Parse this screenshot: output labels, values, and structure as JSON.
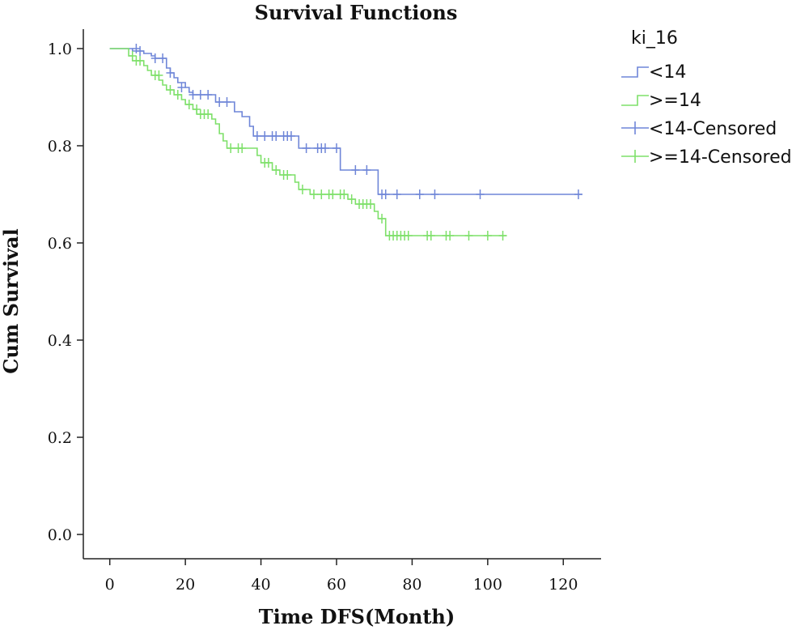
{
  "chart_data": {
    "type": "line",
    "title": "Survival Functions",
    "xlabel": "Time DFS(Month)",
    "ylabel": "Cum Survival",
    "xlim": [
      -7,
      130
    ],
    "ylim": [
      -0.05,
      1.04
    ],
    "xticks": [
      0,
      20,
      40,
      60,
      80,
      100,
      120
    ],
    "yticks": [
      0.0,
      0.2,
      0.4,
      0.6,
      0.8,
      1.0
    ],
    "xtick_labels": [
      "0",
      "20",
      "40",
      "60",
      "80",
      "100",
      "120"
    ],
    "ytick_labels": [
      "0.0",
      "0.2",
      "0.4",
      "0.6",
      "0.8",
      "1.0"
    ],
    "grid": false,
    "legend": {
      "title": "ki_16",
      "position": "top-right",
      "entries": [
        "<14",
        ">=14",
        "<14-Censored",
        ">=14-Censored"
      ]
    },
    "series": [
      {
        "name": "<14",
        "color": "#6f86d8",
        "steps": [
          [
            0,
            1.0
          ],
          [
            6,
            0.995
          ],
          [
            9,
            0.99
          ],
          [
            11,
            0.985
          ],
          [
            12,
            0.98
          ],
          [
            15,
            0.96
          ],
          [
            16,
            0.95
          ],
          [
            17,
            0.94
          ],
          [
            18,
            0.93
          ],
          [
            20,
            0.92
          ],
          [
            21,
            0.91
          ],
          [
            22,
            0.905
          ],
          [
            28,
            0.89
          ],
          [
            33,
            0.87
          ],
          [
            35,
            0.86
          ],
          [
            37,
            0.84
          ],
          [
            38,
            0.82
          ],
          [
            50,
            0.795
          ],
          [
            61,
            0.75
          ],
          [
            71,
            0.7
          ],
          [
            125,
            0.7
          ]
        ],
        "censored": [
          [
            7,
            1.0
          ],
          [
            8,
            0.995
          ],
          [
            12,
            0.98
          ],
          [
            14,
            0.98
          ],
          [
            16,
            0.95
          ],
          [
            19,
            0.92
          ],
          [
            22,
            0.905
          ],
          [
            24,
            0.905
          ],
          [
            26,
            0.905
          ],
          [
            29,
            0.89
          ],
          [
            31,
            0.89
          ],
          [
            39,
            0.82
          ],
          [
            41,
            0.82
          ],
          [
            43,
            0.82
          ],
          [
            44,
            0.82
          ],
          [
            46,
            0.82
          ],
          [
            47,
            0.82
          ],
          [
            48,
            0.82
          ],
          [
            52,
            0.795
          ],
          [
            55,
            0.795
          ],
          [
            56,
            0.795
          ],
          [
            57,
            0.795
          ],
          [
            60,
            0.795
          ],
          [
            65,
            0.75
          ],
          [
            68,
            0.75
          ],
          [
            72,
            0.7
          ],
          [
            73,
            0.7
          ],
          [
            76,
            0.7
          ],
          [
            82,
            0.7
          ],
          [
            86,
            0.7
          ],
          [
            98,
            0.7
          ],
          [
            124,
            0.7
          ]
        ]
      },
      {
        "name": ">=14",
        "color": "#7ee06a",
        "steps": [
          [
            0,
            1.0
          ],
          [
            5,
            0.985
          ],
          [
            6,
            0.975
          ],
          [
            9,
            0.965
          ],
          [
            10,
            0.955
          ],
          [
            11,
            0.945
          ],
          [
            13,
            0.935
          ],
          [
            14,
            0.925
          ],
          [
            15,
            0.915
          ],
          [
            17,
            0.905
          ],
          [
            19,
            0.895
          ],
          [
            20,
            0.885
          ],
          [
            22,
            0.875
          ],
          [
            23,
            0.865
          ],
          [
            27,
            0.855
          ],
          [
            28,
            0.845
          ],
          [
            29,
            0.825
          ],
          [
            30,
            0.81
          ],
          [
            31,
            0.795
          ],
          [
            39,
            0.78
          ],
          [
            40,
            0.765
          ],
          [
            43,
            0.75
          ],
          [
            45,
            0.74
          ],
          [
            49,
            0.725
          ],
          [
            50,
            0.71
          ],
          [
            53,
            0.7
          ],
          [
            63,
            0.69
          ],
          [
            65,
            0.68
          ],
          [
            70,
            0.665
          ],
          [
            71,
            0.65
          ],
          [
            73,
            0.615
          ],
          [
            105,
            0.615
          ]
        ],
        "censored": [
          [
            6,
            0.985
          ],
          [
            7,
            0.975
          ],
          [
            8,
            0.975
          ],
          [
            12,
            0.945
          ],
          [
            13,
            0.945
          ],
          [
            16,
            0.915
          ],
          [
            18,
            0.905
          ],
          [
            21,
            0.885
          ],
          [
            23,
            0.875
          ],
          [
            24,
            0.865
          ],
          [
            25,
            0.865
          ],
          [
            26,
            0.865
          ],
          [
            32,
            0.795
          ],
          [
            34,
            0.795
          ],
          [
            35,
            0.795
          ],
          [
            41,
            0.765
          ],
          [
            42,
            0.765
          ],
          [
            44,
            0.75
          ],
          [
            46,
            0.74
          ],
          [
            47,
            0.74
          ],
          [
            51,
            0.71
          ],
          [
            54,
            0.7
          ],
          [
            56,
            0.7
          ],
          [
            58,
            0.7
          ],
          [
            59,
            0.7
          ],
          [
            61,
            0.7
          ],
          [
            62,
            0.7
          ],
          [
            64,
            0.69
          ],
          [
            66,
            0.68
          ],
          [
            67,
            0.68
          ],
          [
            68,
            0.68
          ],
          [
            69,
            0.68
          ],
          [
            72,
            0.65
          ],
          [
            74,
            0.615
          ],
          [
            75,
            0.615
          ],
          [
            76,
            0.615
          ],
          [
            77,
            0.615
          ],
          [
            78,
            0.615
          ],
          [
            79,
            0.615
          ],
          [
            84,
            0.615
          ],
          [
            85,
            0.615
          ],
          [
            89,
            0.615
          ],
          [
            90,
            0.615
          ],
          [
            95,
            0.615
          ],
          [
            100,
            0.615
          ],
          [
            104,
            0.615
          ]
        ]
      }
    ]
  }
}
